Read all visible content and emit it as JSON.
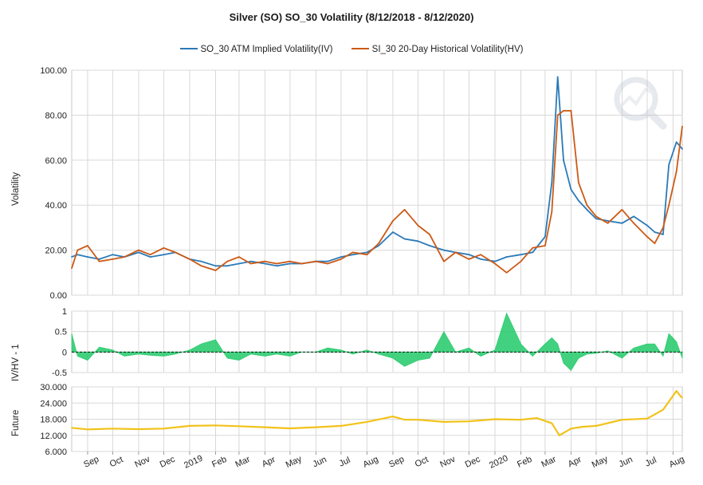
{
  "title": "Silver (SO) SO_30 Volatility (8/12/2018 - 8/12/2020)",
  "legend": [
    {
      "label": "SO_30 ATM Implied Volatility(IV)",
      "color": "#2a7ab8"
    },
    {
      "label": "SI_30 20-Day Historical Volatility(HV)",
      "color": "#cc5a16"
    }
  ],
  "colors": {
    "iv": "#2a7ab8",
    "hv": "#cc5a16",
    "ratio": "#2ecc71",
    "future": "#f2c21a",
    "grid": "#d8d8d8"
  },
  "chart_data": [
    {
      "type": "line",
      "ylabel": "Volatility",
      "ylim": [
        0,
        100
      ],
      "yticks": [
        "100.00",
        "80.00",
        "60.00",
        "40.00",
        "20.00",
        "0.00"
      ],
      "x": [
        "2018-08-13",
        "2018-08-20",
        "2018-09-01",
        "2018-09-15",
        "2018-10-01",
        "2018-10-15",
        "2018-11-01",
        "2018-11-15",
        "2018-12-01",
        "2018-12-15",
        "2019-01-01",
        "2019-01-15",
        "2019-02-01",
        "2019-02-15",
        "2019-03-01",
        "2019-03-15",
        "2019-04-01",
        "2019-04-15",
        "2019-05-01",
        "2019-05-15",
        "2019-06-01",
        "2019-06-15",
        "2019-07-01",
        "2019-07-15",
        "2019-08-01",
        "2019-08-15",
        "2019-09-01",
        "2019-09-15",
        "2019-10-01",
        "2019-10-15",
        "2019-11-01",
        "2019-11-15",
        "2019-12-01",
        "2019-12-15",
        "2020-01-01",
        "2020-01-15",
        "2020-02-01",
        "2020-02-15",
        "2020-03-01",
        "2020-03-09",
        "2020-03-16",
        "2020-03-23",
        "2020-04-01",
        "2020-04-10",
        "2020-04-20",
        "2020-05-01",
        "2020-05-15",
        "2020-06-01",
        "2020-06-15",
        "2020-07-01",
        "2020-07-10",
        "2020-07-20",
        "2020-07-27",
        "2020-08-05",
        "2020-08-12"
      ],
      "series": [
        {
          "name": "SO_30 ATM Implied Volatility(IV)",
          "key": "iv",
          "values": [
            17,
            18,
            17,
            16,
            18,
            17,
            19,
            17,
            18,
            19,
            16,
            15,
            13,
            13,
            14,
            15,
            14,
            13,
            14,
            14,
            15,
            15,
            17,
            18,
            19,
            22,
            28,
            25,
            24,
            22,
            20,
            19,
            18,
            16,
            15,
            17,
            18,
            19,
            26,
            50,
            97,
            60,
            47,
            42,
            38,
            34,
            33,
            32,
            35,
            31,
            28,
            27,
            58,
            68,
            65
          ]
        },
        {
          "name": "SI_30 20-Day Historical Volatility(HV)",
          "key": "hv",
          "values": [
            12,
            20,
            22,
            15,
            16,
            17,
            20,
            18,
            21,
            19,
            16,
            13,
            11,
            15,
            17,
            14,
            15,
            14,
            15,
            14,
            15,
            14,
            16,
            19,
            18,
            23,
            33,
            38,
            31,
            27,
            15,
            19,
            16,
            18,
            14,
            10,
            15,
            21,
            22,
            37,
            80,
            82,
            82,
            50,
            40,
            35,
            32,
            38,
            32,
            26,
            23,
            30,
            40,
            55,
            75
          ]
        }
      ]
    },
    {
      "type": "area",
      "ylabel": "IV/HV - 1",
      "ylim": [
        -0.5,
        1
      ],
      "yticks": [
        "1",
        "0.5",
        "0",
        "-0.5"
      ],
      "x": [
        "2018-08-13",
        "2018-08-20",
        "2018-09-01",
        "2018-09-15",
        "2018-10-01",
        "2018-10-15",
        "2018-11-01",
        "2018-11-15",
        "2018-12-01",
        "2018-12-15",
        "2019-01-01",
        "2019-01-15",
        "2019-02-01",
        "2019-02-15",
        "2019-03-01",
        "2019-03-15",
        "2019-04-01",
        "2019-04-15",
        "2019-05-01",
        "2019-05-15",
        "2019-06-01",
        "2019-06-15",
        "2019-07-01",
        "2019-07-15",
        "2019-08-01",
        "2019-08-15",
        "2019-09-01",
        "2019-09-15",
        "2019-10-01",
        "2019-10-15",
        "2019-11-01",
        "2019-11-15",
        "2019-12-01",
        "2019-12-15",
        "2020-01-01",
        "2020-01-15",
        "2020-02-01",
        "2020-02-15",
        "2020-03-01",
        "2020-03-09",
        "2020-03-16",
        "2020-03-23",
        "2020-04-01",
        "2020-04-10",
        "2020-04-20",
        "2020-05-01",
        "2020-05-15",
        "2020-06-01",
        "2020-06-15",
        "2020-07-01",
        "2020-07-10",
        "2020-07-20",
        "2020-07-27",
        "2020-08-05",
        "2020-08-12"
      ],
      "values": [
        0.45,
        -0.1,
        -0.2,
        0.12,
        0.05,
        -0.1,
        -0.05,
        -0.08,
        -0.1,
        -0.05,
        0.05,
        0.2,
        0.3,
        -0.15,
        -0.2,
        -0.05,
        -0.1,
        -0.05,
        -0.1,
        0.0,
        0.0,
        0.1,
        0.05,
        -0.05,
        0.05,
        -0.05,
        -0.15,
        -0.35,
        -0.2,
        -0.15,
        0.5,
        0.0,
        0.1,
        -0.1,
        0.05,
        0.95,
        0.2,
        -0.1,
        0.2,
        0.35,
        0.2,
        -0.27,
        -0.45,
        -0.15,
        -0.05,
        -0.03,
        0.03,
        -0.15,
        0.1,
        0.2,
        0.2,
        -0.1,
        0.45,
        0.25,
        -0.15
      ]
    },
    {
      "type": "line",
      "ylabel": "Future",
      "ylim": [
        6,
        30
      ],
      "yticks": [
        "30.000",
        "24.000",
        "18.000",
        "12.000",
        "6.000"
      ],
      "x": [
        "2018-08-13",
        "2018-09-01",
        "2018-10-01",
        "2018-11-01",
        "2018-12-01",
        "2019-01-01",
        "2019-02-01",
        "2019-03-01",
        "2019-04-01",
        "2019-05-01",
        "2019-06-01",
        "2019-07-01",
        "2019-08-01",
        "2019-09-01",
        "2019-09-15",
        "2019-10-01",
        "2019-11-01",
        "2019-12-01",
        "2020-01-01",
        "2020-02-01",
        "2020-02-20",
        "2020-03-09",
        "2020-03-18",
        "2020-04-01",
        "2020-04-15",
        "2020-05-01",
        "2020-06-01",
        "2020-07-01",
        "2020-07-20",
        "2020-08-05",
        "2020-08-10",
        "2020-08-12"
      ],
      "series": [
        {
          "name": "Future",
          "key": "future",
          "values": [
            14.8,
            14.2,
            14.5,
            14.3,
            14.5,
            15.5,
            15.7,
            15.4,
            15.0,
            14.6,
            15.0,
            15.5,
            17.0,
            19.0,
            17.8,
            17.8,
            17.0,
            17.2,
            18.0,
            17.8,
            18.4,
            16.5,
            12.0,
            14.5,
            15.2,
            15.5,
            17.8,
            18.2,
            21.5,
            28.5,
            26.5,
            26.0
          ]
        }
      ]
    }
  ],
  "x_axis": {
    "tick_dates": [
      "2018-09-01",
      "2018-10-01",
      "2018-11-01",
      "2018-12-01",
      "2019-01-01",
      "2019-02-01",
      "2019-03-01",
      "2019-04-01",
      "2019-05-01",
      "2019-06-01",
      "2019-07-01",
      "2019-08-01",
      "2019-09-01",
      "2019-10-01",
      "2019-11-01",
      "2019-12-01",
      "2020-01-01",
      "2020-02-01",
      "2020-03-01",
      "2020-04-01",
      "2020-05-01",
      "2020-06-01",
      "2020-07-01",
      "2020-08-01"
    ],
    "tick_labels": [
      "Sep",
      "Oct",
      "Nov",
      "Dec",
      "2019",
      "Feb",
      "Mar",
      "Apr",
      "May",
      "Jun",
      "Jul",
      "Aug",
      "Sep",
      "Oct",
      "Nov",
      "Dec",
      "2020",
      "Feb",
      "Mar",
      "Apr",
      "May",
      "Jun",
      "Jul",
      "Aug"
    ],
    "range": [
      "2018-08-13",
      "2020-08-12"
    ]
  },
  "watermark_icon": "search-chart-icon"
}
